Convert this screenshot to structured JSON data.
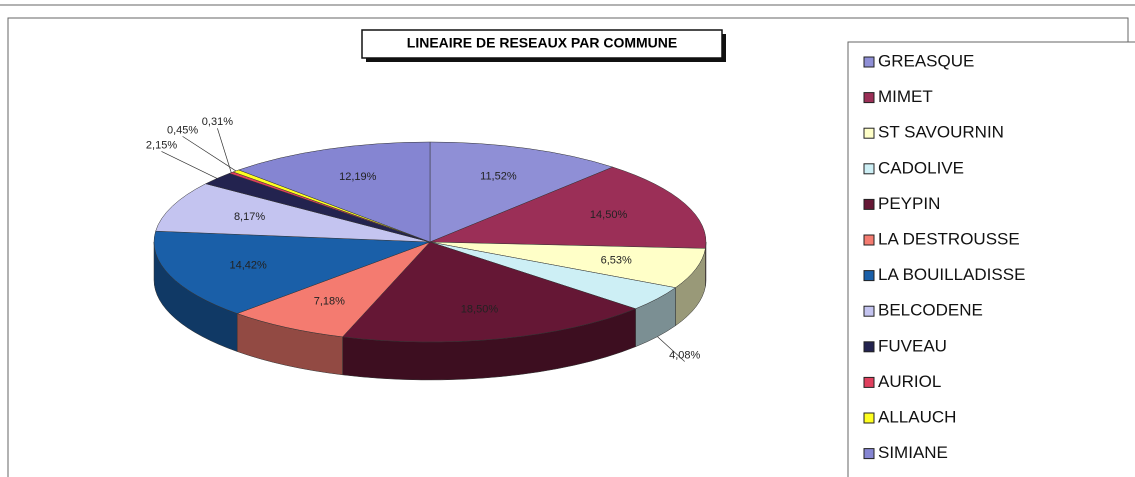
{
  "chart_data": {
    "type": "pie3d",
    "title": "LINEAIRE DE RESEAUX PAR COMMUNE",
    "categories": [
      "GREASQUE",
      "MIMET",
      "ST SAVOURNIN",
      "CADOLIVE",
      "PEYPIN",
      "LA DESTROUSSE",
      "LA BOUILLADISSE",
      "BELCODENE",
      "FUVEAU",
      "AURIOL",
      "ALLAUCH",
      "SIMIANE"
    ],
    "values": [
      11.52,
      14.5,
      6.53,
      4.08,
      18.5,
      7.18,
      14.42,
      8.17,
      2.15,
      0.31,
      0.45,
      12.19
    ],
    "value_labels": [
      "11,52%",
      "14,50%",
      "6,53%",
      "4,08%",
      "18,50%",
      "7,18%",
      "14,42%",
      "8,17%",
      "2,15%",
      "0,31%",
      "0,45%",
      "12,19%"
    ],
    "colors": [
      "#8f8fd6",
      "#9b2f57",
      "#ffffc8",
      "#cdeff5",
      "#651735",
      "#f47b70",
      "#1a5fa8",
      "#c4c4f0",
      "#23234f",
      "#e0405e",
      "#ffff20",
      "#8585d2"
    ],
    "legend": "right"
  }
}
